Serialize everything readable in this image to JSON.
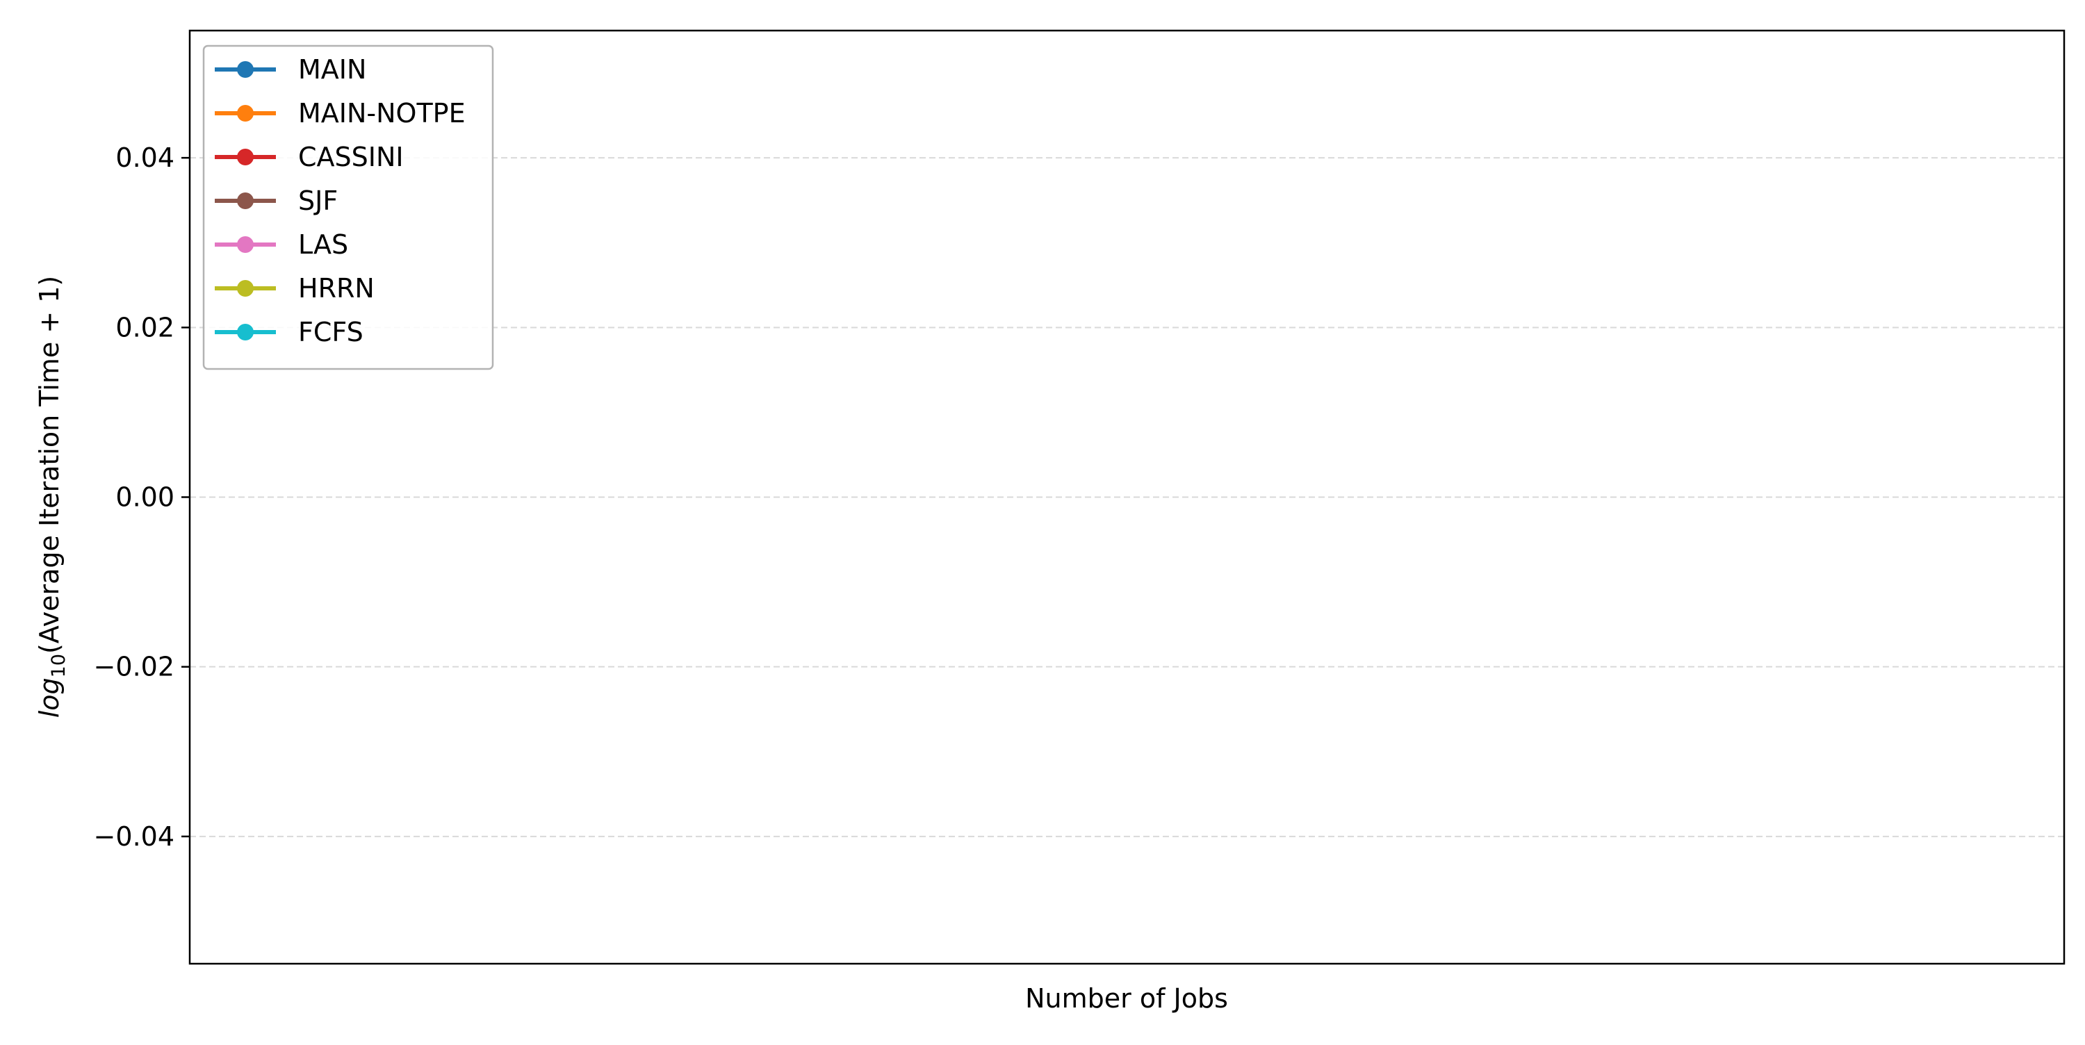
{
  "chart_data": {
    "type": "line",
    "title": "",
    "xlabel": "Number of Jobs",
    "ylabel": {
      "log": "log",
      "base": "10",
      "rest": "(Average Iteration Time + 1)"
    },
    "ylim": [
      -0.055,
      0.055
    ],
    "yticks": [
      -0.04,
      -0.02,
      0.0,
      0.02,
      0.04
    ],
    "ytick_labels": [
      "−0.04",
      "−0.02",
      "0.00",
      "0.02",
      "0.04"
    ],
    "x": [],
    "grid": "y-dashed",
    "legend_position": "top-left",
    "series": [
      {
        "name": "MAIN",
        "color": "#1f77b4",
        "values": []
      },
      {
        "name": "MAIN-NOTPE",
        "color": "#ff7f0e",
        "values": []
      },
      {
        "name": "CASSINI",
        "color": "#d62728",
        "values": []
      },
      {
        "name": "SJF",
        "color": "#8c564b",
        "values": []
      },
      {
        "name": "LAS",
        "color": "#e377c2",
        "values": []
      },
      {
        "name": "HRRN",
        "color": "#bcbd22",
        "values": []
      },
      {
        "name": "FCFS",
        "color": "#17becf",
        "values": []
      }
    ]
  }
}
